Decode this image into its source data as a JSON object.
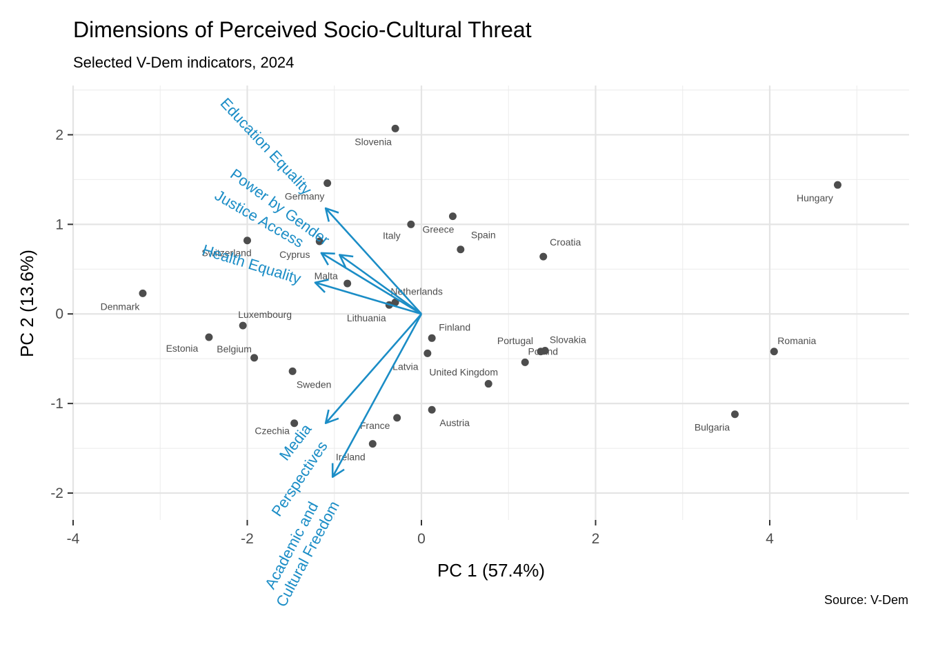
{
  "chart_data": {
    "type": "scatter",
    "title": "Dimensions of Perceived Socio-Cultural Threat",
    "subtitle": "Selected V-Dem indicators, 2024",
    "xlabel": "PC 1 (57.4%)",
    "ylabel": "PC 2 (13.6%)",
    "caption": "Source: V-Dem",
    "xlim": [
      -4.0,
      5.6
    ],
    "ylim": [
      -2.3,
      2.55
    ],
    "x_ticks": [
      -4,
      -2,
      0,
      2,
      4
    ],
    "y_ticks": [
      -2,
      -1,
      0,
      1,
      2
    ],
    "grid": true,
    "points": [
      {
        "label": "Slovenia",
        "x": -0.3,
        "y": 2.07
      },
      {
        "label": "Germany",
        "x": -1.08,
        "y": 1.46
      },
      {
        "label": "Hungary",
        "x": 4.78,
        "y": 1.44
      },
      {
        "label": "Greece",
        "x": 0.36,
        "y": 1.09
      },
      {
        "label": "Italy",
        "x": -0.12,
        "y": 1.0
      },
      {
        "label": "Switzerland",
        "x": -2.0,
        "y": 0.82
      },
      {
        "label": "Cyprus",
        "x": -1.17,
        "y": 0.81
      },
      {
        "label": "Spain",
        "x": 0.45,
        "y": 0.72
      },
      {
        "label": "Croatia",
        "x": 1.4,
        "y": 0.64
      },
      {
        "label": "Malta",
        "x": -0.85,
        "y": 0.34
      },
      {
        "label": "Denmark",
        "x": -3.2,
        "y": 0.23
      },
      {
        "label": "Netherlands",
        "x": -0.3,
        "y": 0.13
      },
      {
        "label": "Lithuania",
        "x": -0.37,
        "y": 0.1
      },
      {
        "label": "Luxembourg",
        "x": -2.05,
        "y": -0.13
      },
      {
        "label": "Finland",
        "x": 0.12,
        "y": -0.27
      },
      {
        "label": "Estonia",
        "x": -2.44,
        "y": -0.26
      },
      {
        "label": "Romania",
        "x": 4.05,
        "y": -0.42
      },
      {
        "label": "Slovakia",
        "x": 1.42,
        "y": -0.41
      },
      {
        "label": "Portugal",
        "x": 1.37,
        "y": -0.42
      },
      {
        "label": "Latvia",
        "x": 0.07,
        "y": -0.44
      },
      {
        "label": "Belgium",
        "x": -1.92,
        "y": -0.49
      },
      {
        "label": "Poland",
        "x": 1.19,
        "y": -0.54
      },
      {
        "label": "Sweden",
        "x": -1.48,
        "y": -0.64
      },
      {
        "label": "United Kingdom",
        "x": 0.77,
        "y": -0.78
      },
      {
        "label": "Austria",
        "x": 0.12,
        "y": -1.07
      },
      {
        "label": "Bulgaria",
        "x": 3.6,
        "y": -1.12
      },
      {
        "label": "Czechia",
        "x": -1.46,
        "y": -1.22
      },
      {
        "label": "France",
        "x": -0.28,
        "y": -1.16
      },
      {
        "label": "Ireland",
        "x": -0.56,
        "y": -1.45
      }
    ],
    "loadings": [
      {
        "label": "Education Equality",
        "x": -1.1,
        "y": 1.18
      },
      {
        "label": "Power by Gender",
        "x": -0.94,
        "y": 0.66
      },
      {
        "label": "Justice Access",
        "x": -1.15,
        "y": 0.68
      },
      {
        "label": "Health Equality",
        "x": -1.22,
        "y": 0.35
      },
      {
        "label": "Media",
        "x": -1.1,
        "y": -1.22
      },
      {
        "label": "Perspectives",
        "x": -1.02,
        "y": -1.82
      },
      {
        "label": "Academic and Cultural Freedom",
        "x": -1.02,
        "y": -1.82
      }
    ],
    "point_color": "#4d4d4d",
    "loading_color": "#1b8dc6"
  }
}
